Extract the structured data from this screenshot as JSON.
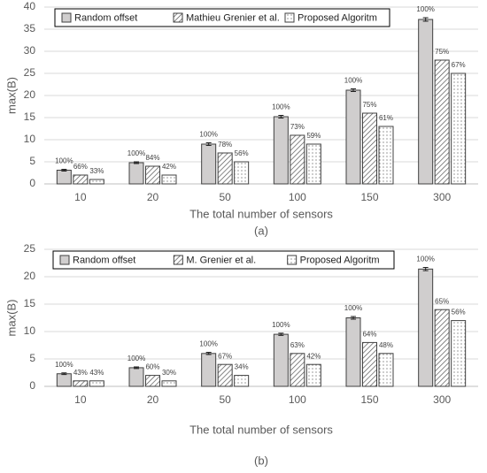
{
  "chart_data": [
    {
      "type": "bar",
      "caption": "(a)",
      "xlabel": "The total number of sensors",
      "ylabel": "max(B)",
      "categories": [
        "10",
        "20",
        "50",
        "100",
        "150",
        "300"
      ],
      "ylim": [
        0,
        40
      ],
      "yticks": [
        0,
        5,
        10,
        15,
        20,
        25,
        30,
        35,
        40
      ],
      "grid": true,
      "legend": "top",
      "series": [
        {
          "name": "Random offset",
          "color": "#d0cece",
          "pattern": "solid",
          "values": [
            3.1,
            4.8,
            9,
            15.2,
            21.2,
            37.2
          ],
          "errors": [
            0.2,
            0.2,
            0.3,
            0.3,
            0.3,
            0.4
          ],
          "percent_labels": [
            "100%",
            "100%",
            "100%",
            "100%",
            "100%",
            "100%"
          ]
        },
        {
          "name": "Mathieu Grenier et al.",
          "color": "#595959",
          "pattern": "hatch",
          "values": [
            2,
            4,
            7,
            11,
            16,
            28
          ],
          "percent_labels": [
            "66%",
            "84%",
            "78%",
            "73%",
            "75%",
            "75%"
          ]
        },
        {
          "name": "Proposed Algoritm",
          "color": "#595959",
          "pattern": "dots",
          "values": [
            1,
            2,
            5,
            9,
            13,
            25
          ],
          "percent_labels": [
            "33%",
            "42%",
            "56%",
            "59%",
            "61%",
            "67%"
          ]
        }
      ]
    },
    {
      "type": "bar",
      "caption": "(b)",
      "xlabel": "The total number of sensors",
      "ylabel": "max(B)",
      "categories": [
        "10",
        "20",
        "50",
        "100",
        "150",
        "300"
      ],
      "ylim": [
        0,
        25
      ],
      "yticks": [
        0,
        5,
        10,
        15,
        20,
        25
      ],
      "grid": true,
      "legend": "top",
      "series": [
        {
          "name": "Random offset",
          "color": "#d0cece",
          "pattern": "solid",
          "values": [
            2.3,
            3.4,
            6,
            9.5,
            12.5,
            21.4
          ],
          "errors": [
            0.15,
            0.15,
            0.2,
            0.2,
            0.25,
            0.3
          ],
          "percent_labels": [
            "100%",
            "100%",
            "100%",
            "100%",
            "100%",
            "100%"
          ]
        },
        {
          "name": "M. Grenier et al.",
          "color": "#595959",
          "pattern": "hatch",
          "values": [
            1,
            2,
            4,
            6,
            8,
            14
          ],
          "percent_labels": [
            "43%",
            "60%",
            "67%",
            "63%",
            "64%",
            "65%"
          ]
        },
        {
          "name": "Proposed Algoritm",
          "color": "#595959",
          "pattern": "dots",
          "values": [
            1,
            1,
            2,
            4,
            6,
            12
          ],
          "percent_labels": [
            "43%",
            "30%",
            "34%",
            "42%",
            "48%",
            "56%"
          ]
        }
      ]
    }
  ]
}
